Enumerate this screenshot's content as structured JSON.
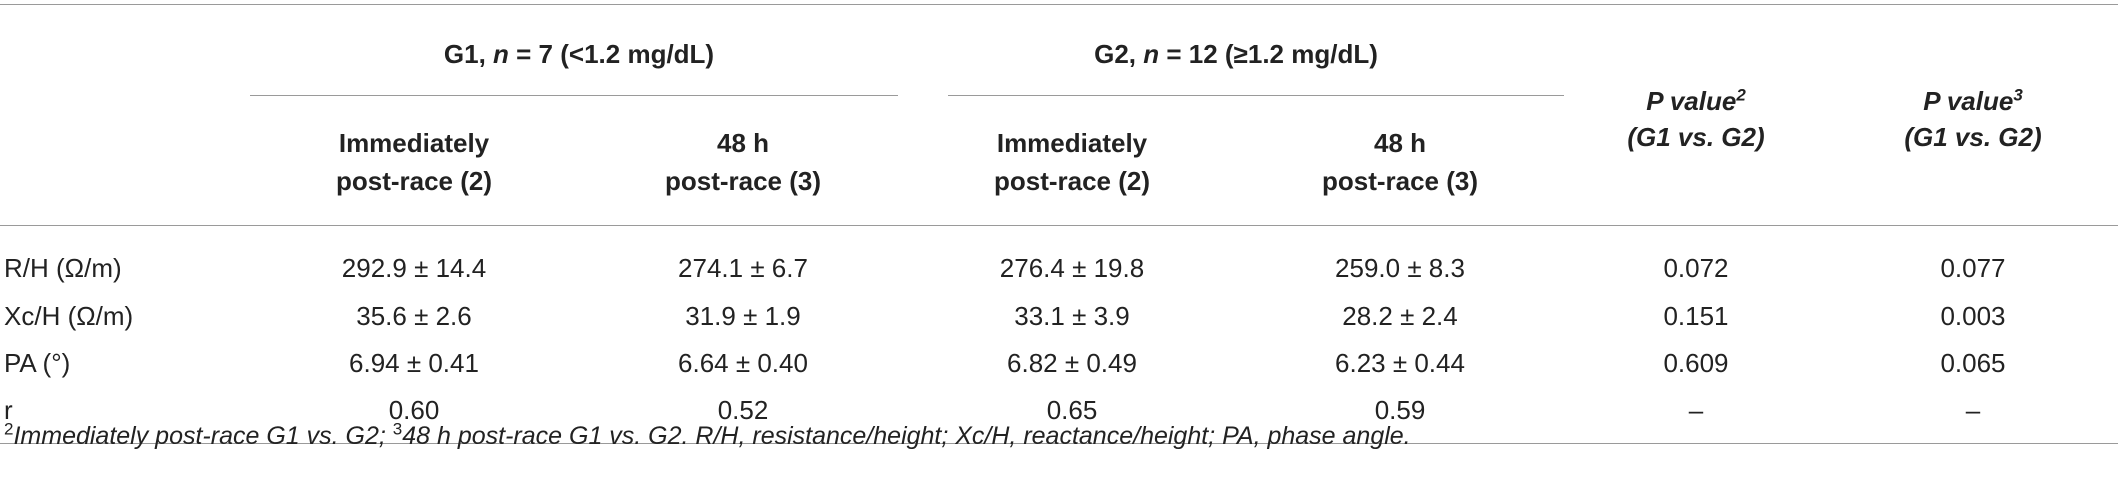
{
  "header": {
    "g1": {
      "prefix": "G1, ",
      "n": "n",
      "suffix": " = 7 (<1.2 mg/dL)"
    },
    "g2": {
      "prefix": "G2, ",
      "n": "n",
      "suffix": " = 12 (≥1.2 mg/dL)"
    },
    "p2": {
      "label": "P value",
      "sup": "2",
      "sub": "(G1 vs. G2)"
    },
    "p3": {
      "label": "P value",
      "sup": "3",
      "sub": "(G1 vs. G2)"
    },
    "sub": [
      {
        "line1": "Immediately",
        "line2": "post-race (2)"
      },
      {
        "line1": "48 h",
        "line2": "post-race (3)"
      },
      {
        "line1": "Immediately",
        "line2": "post-race (2)"
      },
      {
        "line1": "48 h",
        "line2": "post-race (3)"
      }
    ]
  },
  "rows": [
    {
      "label": "R/H (Ω/m)",
      "cells": [
        "292.9 ± 14.4",
        "274.1 ± 6.7",
        "276.4 ± 19.8",
        "259.0 ± 8.3",
        "0.072",
        "0.077"
      ]
    },
    {
      "label": "Xc/H (Ω/m)",
      "cells": [
        "35.6 ± 2.6",
        "31.9 ± 1.9",
        "33.1 ± 3.9",
        "28.2 ± 2.4",
        "0.151",
        "0.003"
      ]
    },
    {
      "label": "PA (°)",
      "cells": [
        "6.94 ± 0.41",
        "6.64 ± 0.40",
        "6.82 ± 0.49",
        "6.23 ± 0.44",
        "0.609",
        "0.065"
      ]
    },
    {
      "label": "r",
      "cells": [
        "0.60",
        "0.52",
        "0.65",
        "0.59",
        "–",
        "–"
      ]
    }
  ],
  "footnote": {
    "sup1": "2",
    "text1": "Immediately post-race G1 vs. G2; ",
    "sup2": "3",
    "text2": "48 h post-race G1 vs. G2. R/H, resistance/height; Xc/H, reactance/height; PA, phase angle."
  }
}
